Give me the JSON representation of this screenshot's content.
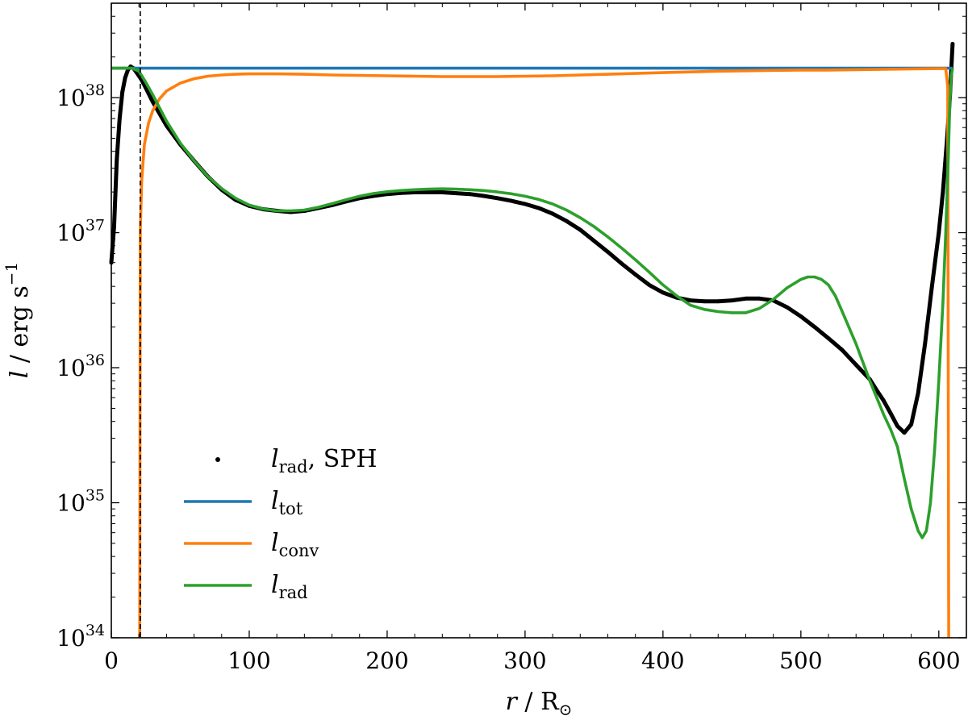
{
  "chart_data": {
    "type": "line",
    "title": "",
    "xlabel": {
      "var": "r",
      "sep": " / ",
      "unit": "R",
      "unit_sub": "⊙"
    },
    "ylabel": {
      "var": "l",
      "sep": " / ",
      "unit": "erg s",
      "unit_sup": "−1"
    },
    "xlim": [
      0,
      620
    ],
    "ylim": [
      1e+34,
      5e+38
    ],
    "yscale": "log",
    "xticks": [
      0,
      100,
      200,
      300,
      400,
      500,
      600
    ],
    "xtick_labels": [
      "0",
      "100",
      "200",
      "300",
      "400",
      "500",
      "600"
    ],
    "yticks": [
      34,
      35,
      36,
      37,
      38
    ],
    "ytick_labels": [
      {
        "base": "10",
        "exp": "34"
      },
      {
        "base": "10",
        "exp": "35"
      },
      {
        "base": "10",
        "exp": "36"
      },
      {
        "base": "10",
        "exp": "37"
      },
      {
        "base": "10",
        "exp": "38"
      }
    ],
    "vline": {
      "x": 21,
      "style": "dashed",
      "color": "#000000"
    },
    "legend_position": "lower-left",
    "series": [
      {
        "name": "l_rad, SPH",
        "legend": {
          "base": "l",
          "sub": "rad",
          "suffix": ", SPH"
        },
        "kind": "scatter",
        "color": "#000000",
        "x": [
          0,
          2,
          4,
          6,
          8,
          10,
          12,
          14,
          16,
          18,
          20,
          22,
          25,
          30,
          40,
          50,
          60,
          70,
          80,
          90,
          100,
          110,
          120,
          130,
          140,
          150,
          160,
          170,
          180,
          190,
          200,
          210,
          220,
          230,
          240,
          250,
          260,
          270,
          280,
          290,
          300,
          310,
          320,
          330,
          340,
          350,
          360,
          370,
          380,
          390,
          400,
          410,
          420,
          430,
          440,
          450,
          460,
          470,
          480,
          490,
          500,
          510,
          520,
          530,
          540,
          550,
          555,
          560,
          565,
          570,
          575,
          580,
          585,
          590,
          595,
          600,
          603,
          606,
          608,
          610
        ],
        "values": [
          6e+36,
          1.1e+37,
          3.5e+37,
          7e+37,
          1.1e+38,
          1.4e+38,
          1.6e+38,
          1.7e+38,
          1.65e+38,
          1.55e+38,
          1.45e+38,
          1.35e+38,
          1.18e+38,
          9.3e+37,
          6.2e+37,
          4.5e+37,
          3.4e+37,
          2.6e+37,
          2.08e+37,
          1.75e+37,
          1.58e+37,
          1.49e+37,
          1.45e+37,
          1.42e+37,
          1.45e+37,
          1.52e+37,
          1.6e+37,
          1.7e+37,
          1.8e+37,
          1.87e+37,
          1.93e+37,
          1.97e+37,
          1.99e+37,
          1.99e+37,
          1.99e+37,
          1.96e+37,
          1.93e+37,
          1.87e+37,
          1.8e+37,
          1.72e+37,
          1.63e+37,
          1.52e+37,
          1.38e+37,
          1.22e+37,
          1.05e+37,
          8.7e+36,
          7.2e+36,
          5.9e+36,
          4.9e+36,
          4.1e+36,
          3.6e+36,
          3.3e+36,
          3.15e+36,
          3.1e+36,
          3.1e+36,
          3.15e+36,
          3.25e+36,
          3.25e+36,
          3.15e+36,
          2.8e+36,
          2.4e+36,
          2e+36,
          1.65e+36,
          1.35e+36,
          1.05e+36,
          8.2e+35,
          6.8e+35,
          5.7e+35,
          4.6e+35,
          3.7e+35,
          3.3e+35,
          3.8e+35,
          6.5e+35,
          1.5e+36,
          4e+36,
          1e+37,
          2e+37,
          5e+37,
          1e+38,
          2.5e+38
        ]
      },
      {
        "name": "l_tot",
        "legend": {
          "base": "l",
          "sub": "tot",
          "suffix": ""
        },
        "kind": "line",
        "color": "#1f77b4",
        "x": [
          0,
          610
        ],
        "values": [
          1.65e+38,
          1.65e+38
        ]
      },
      {
        "name": "l_conv",
        "legend": {
          "base": "l",
          "sub": "conv",
          "suffix": ""
        },
        "kind": "line",
        "color": "#ff7f0e",
        "x": [
          20.6,
          21,
          22,
          24,
          27,
          30,
          35,
          40,
          50,
          60,
          70,
          80,
          90,
          100,
          120,
          140,
          160,
          180,
          200,
          220,
          240,
          260,
          280,
          300,
          320,
          340,
          360,
          380,
          400,
          420,
          440,
          460,
          480,
          500,
          520,
          540,
          560,
          580,
          600,
          605,
          606.5,
          607,
          607.2
        ],
        "values": [
          1e+34,
          1e+37,
          2.4e+37,
          4.5e+37,
          6.5e+37,
          8e+37,
          9.8e+37,
          1.12e+38,
          1.28e+38,
          1.38e+38,
          1.44e+38,
          1.47e+38,
          1.49e+38,
          1.5e+38,
          1.5e+38,
          1.49e+38,
          1.47e+38,
          1.46e+38,
          1.45e+38,
          1.44e+38,
          1.43e+38,
          1.43e+38,
          1.43e+38,
          1.44e+38,
          1.45e+38,
          1.47e+38,
          1.49e+38,
          1.51e+38,
          1.53e+38,
          1.55e+38,
          1.57e+38,
          1.58e+38,
          1.59e+38,
          1.6e+38,
          1.6e+38,
          1.61e+38,
          1.62e+38,
          1.63e+38,
          1.64e+38,
          1.64e+38,
          1.2e+38,
          1e+35,
          1e+34
        ]
      },
      {
        "name": "l_rad",
        "legend": {
          "base": "l",
          "sub": "rad",
          "suffix": ""
        },
        "kind": "line",
        "color": "#2ca02c",
        "x": [
          0,
          5,
          10,
          15,
          20,
          25,
          30,
          40,
          50,
          60,
          70,
          80,
          90,
          100,
          110,
          120,
          130,
          140,
          150,
          160,
          170,
          180,
          190,
          200,
          210,
          220,
          230,
          240,
          250,
          260,
          270,
          280,
          290,
          300,
          310,
          320,
          330,
          340,
          350,
          360,
          370,
          380,
          390,
          400,
          410,
          420,
          430,
          440,
          450,
          460,
          470,
          480,
          490,
          500,
          505,
          510,
          515,
          520,
          525,
          530,
          540,
          550,
          560,
          565,
          570,
          575,
          580,
          585,
          588,
          591,
          594,
          597,
          600,
          603,
          605,
          607,
          608,
          609,
          610
        ],
        "values": [
          1.65e+38,
          1.65e+38,
          1.65e+38,
          1.65e+38,
          1.57e+38,
          1.3e+38,
          1.05e+38,
          6.7e+37,
          4.6e+37,
          3.4e+37,
          2.6e+37,
          2.12e+37,
          1.8e+37,
          1.6e+37,
          1.5e+37,
          1.45e+37,
          1.45e+37,
          1.47e+37,
          1.54e+37,
          1.64e+37,
          1.75e+37,
          1.86e+37,
          1.95e+37,
          2.01e+37,
          2.05e+37,
          2.08e+37,
          2.1e+37,
          2.11e+37,
          2.1e+37,
          2.08e+37,
          2.05e+37,
          2e+37,
          1.94e+37,
          1.86e+37,
          1.76e+37,
          1.63e+37,
          1.47e+37,
          1.29e+37,
          1.11e+37,
          9.3e+36,
          7.7e+36,
          6.3e+36,
          5.1e+36,
          4.1e+36,
          3.4e+36,
          2.9e+36,
          2.7e+36,
          2.6e+36,
          2.55e+36,
          2.55e+36,
          2.75e+36,
          3.2e+36,
          3.9e+36,
          4.5e+36,
          4.7e+36,
          4.7e+36,
          4.5e+36,
          4.1e+36,
          3.4e+36,
          2.6e+36,
          1.5e+36,
          8e+35,
          4.5e+35,
          3.5e+35,
          2.6e+35,
          1.5e+35,
          9e+34,
          6.2e+34,
          5.5e+34,
          6.2e+34,
          1e+35,
          2.5e+35,
          8e+35,
          3e+36,
          1e+37,
          4e+37,
          9e+37,
          1.45e+38,
          1.65e+38
        ]
      }
    ]
  }
}
